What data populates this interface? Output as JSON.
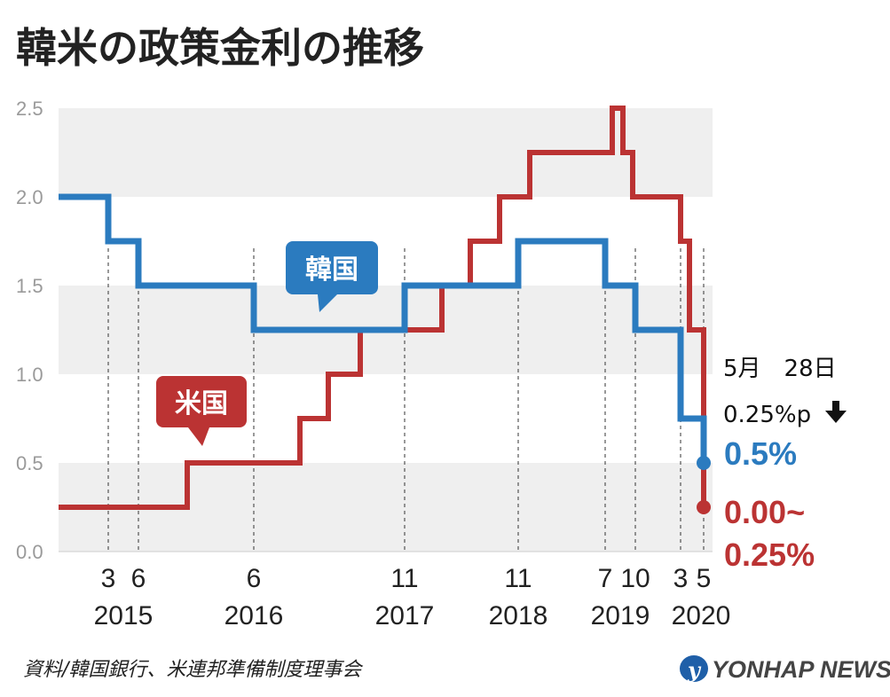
{
  "title": "韓米の政策金利の推移",
  "source": "資料/韓国銀行、米連邦準備制度理事会",
  "brand": "YONHAP NEWS",
  "colors": {
    "korea": "#2b7bbf",
    "us": "#bb3333",
    "band": "#efefef",
    "grid_line": "#333333"
  },
  "chart_data": {
    "type": "line",
    "step": true,
    "ylim": [
      0,
      2.5
    ],
    "yticks": [
      "0.0",
      "0.5",
      "1.0",
      "1.5",
      "2.0",
      "2.5"
    ],
    "month_labels": [
      "3",
      "6",
      "6",
      "11",
      "11",
      "7",
      "10",
      "3",
      "5"
    ],
    "year_labels": [
      "2015",
      "2016",
      "2017",
      "2018",
      "2019",
      "2020"
    ],
    "series": [
      {
        "name": "韓国",
        "values": [
          2.0,
          1.75,
          1.5,
          1.25,
          1.5,
          1.75,
          1.5,
          1.25,
          0.75,
          0.5
        ]
      },
      {
        "name": "米国",
        "values": [
          0.25,
          0.5,
          0.75,
          1.0,
          1.25,
          1.5,
          1.75,
          2.0,
          2.25,
          2.5,
          2.25,
          2.0,
          1.75,
          1.25,
          0.25
        ]
      }
    ],
    "annotation": {
      "date": "5月　28日",
      "change": "0.25%p"
    },
    "end_values": {
      "korea": "0.5%",
      "us_line1": "0.00~",
      "us_line2": "0.25%"
    }
  }
}
